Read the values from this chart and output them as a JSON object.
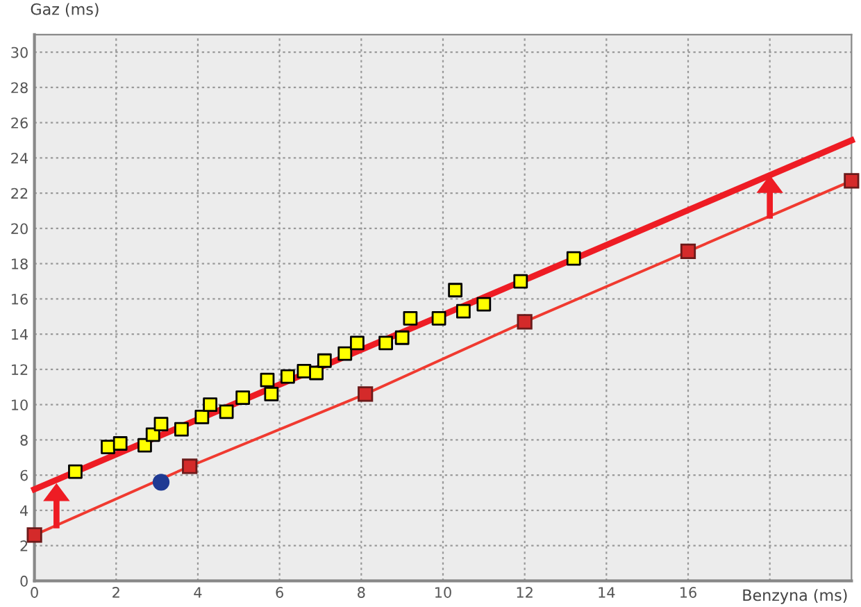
{
  "chart_data": {
    "type": "scatter",
    "xlabel": "Benzyna (ms)",
    "ylabel": "Gaz (ms)",
    "xlim": [
      0,
      20
    ],
    "ylim": [
      0,
      31
    ],
    "xticks": [
      0,
      2,
      4,
      6,
      8,
      10,
      12,
      14,
      16,
      {
        "value": 18,
        "label": null
      }
    ],
    "yticks": [
      0,
      2,
      4,
      6,
      8,
      10,
      12,
      14,
      16,
      18,
      20,
      22,
      24,
      26,
      28,
      30
    ],
    "grid": true,
    "series": [
      {
        "type": "line",
        "color": "#ee1c24",
        "marker": "none",
        "x": [
          0,
          20
        ],
        "values": [
          5.2,
          25.0
        ]
      },
      {
        "type": "line",
        "color": "#f03a30",
        "marker": "square",
        "x": [
          0,
          3.8,
          8.1,
          12,
          16,
          20
        ],
        "values": [
          2.6,
          6.5,
          10.6,
          14.7,
          18.7,
          22.7
        ]
      },
      {
        "color": "#ffff00",
        "marker": "square",
        "x": [
          1.0,
          1.8,
          2.1,
          2.7,
          2.9,
          3.1,
          3.6,
          4.1,
          4.3,
          4.7,
          5.1,
          5.7,
          5.8,
          6.2,
          6.6,
          6.9,
          7.1,
          7.6,
          7.9,
          8.6,
          9.0,
          9.2,
          9.9,
          10.3,
          10.5,
          11.0,
          11.9,
          13.2
        ],
        "values": [
          6.2,
          7.6,
          7.8,
          7.7,
          8.3,
          8.9,
          8.6,
          9.3,
          10.0,
          9.6,
          10.4,
          11.4,
          10.6,
          11.6,
          11.9,
          11.8,
          12.5,
          12.9,
          13.5,
          13.5,
          13.8,
          14.9,
          14.9,
          16.5,
          15.3,
          15.7,
          17.0,
          18.3
        ]
      },
      {
        "color": "#1f3a93",
        "marker": "circle",
        "x": [
          3.1
        ],
        "values": [
          5.6
        ]
      }
    ]
  }
}
